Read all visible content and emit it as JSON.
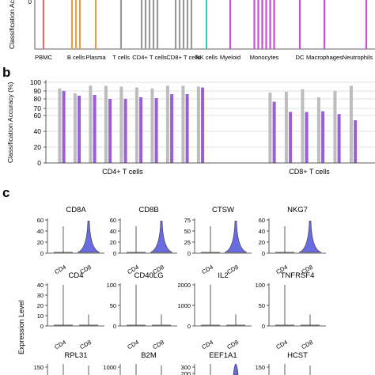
{
  "panel_labels": {
    "b": "b",
    "c": "c"
  },
  "chart_data": [
    {
      "type": "bar",
      "panel": "a",
      "ylabel": "Classification Ac",
      "ytick_visible": "0",
      "categories": [
        "PBMC",
        "B cells",
        "Plasma",
        "T cells",
        "CD4+ T cells",
        "CD8+ T cells",
        "NK cells",
        "Myeloid",
        "Monocytes",
        "DC",
        "Macrophages",
        "Neutrophils"
      ],
      "group_colors": {
        "PBMC": "#e86a6a",
        "B cells": "#e3a04a",
        "Plasma": "#e3a04a",
        "T cells": "#9a9a9a",
        "CD4+ T cells": "#9a9a9a",
        "CD8+ T cells": "#9a9a9a",
        "NK cells": "#3ec6c2",
        "Myeloid": "#c94fd1",
        "Monocytes": "#c94fd1",
        "DC": "#c94fd1",
        "Macrophages": "#c94fd1",
        "Neutrophils": "#c94fd1"
      },
      "bar_counts": [
        1,
        3,
        1,
        1,
        5,
        5,
        1,
        1,
        6,
        1,
        1,
        1
      ],
      "values_note": "all bars extend above the visible crop"
    },
    {
      "type": "bar",
      "panel": "b",
      "ylabel": "Classification Accuracy (%)",
      "yticks": [
        "0",
        "20",
        "40",
        "60",
        "70",
        "80",
        "90",
        "100"
      ],
      "ylim": [
        0,
        100
      ],
      "groups": [
        "CD4+ T cells",
        "CD8+ T cells"
      ],
      "series": [
        {
          "name": "",
          "color": "#bdbdbd",
          "values": [
            93,
            87,
            96,
            96,
            95,
            94,
            93,
            96,
            96,
            95,
            88,
            89,
            92,
            82,
            90,
            96
          ]
        },
        {
          "name": "",
          "color": "#9a5fd6",
          "values": [
            90,
            84,
            85,
            80,
            80,
            82,
            81,
            86,
            86,
            94,
            77,
            65,
            65,
            66,
            62,
            54
          ]
        }
      ],
      "group_pair_counts": [
        10,
        6
      ]
    },
    {
      "type": "violin",
      "panel": "c",
      "ylabel": "Expression Level",
      "x_categories": [
        "CD4",
        "CD8"
      ],
      "fill_color": "#6b6be0",
      "genes": [
        {
          "name": "CD8A",
          "yticks": [
            "0",
            "20",
            "40",
            "60"
          ]
        },
        {
          "name": "CD8B",
          "yticks": [
            "0",
            "20",
            "40",
            "60"
          ]
        },
        {
          "name": "CTSW",
          "yticks": [
            "0",
            "25",
            "50",
            "75"
          ]
        },
        {
          "name": "NKG7",
          "yticks": [
            "0",
            "20",
            "40",
            "60"
          ]
        },
        {
          "name": "CD4",
          "yticks": [
            "0",
            "10",
            "20",
            "30",
            "40"
          ]
        },
        {
          "name": "CD40LG",
          "yticks": [
            "0",
            "50",
            "100"
          ]
        },
        {
          "name": "IL2",
          "yticks": [
            "0",
            "1000",
            "2000"
          ]
        },
        {
          "name": "TNFRSF4",
          "yticks": [
            "0",
            "50",
            "100"
          ]
        },
        {
          "name": "RPL31",
          "yticks": [
            "150"
          ]
        },
        {
          "name": "B2M",
          "yticks": [
            "1000"
          ]
        },
        {
          "name": "EEF1A1",
          "yticks": [
            "300",
            "200"
          ]
        },
        {
          "name": "HCST",
          "yticks": [
            "150"
          ]
        }
      ]
    }
  ]
}
